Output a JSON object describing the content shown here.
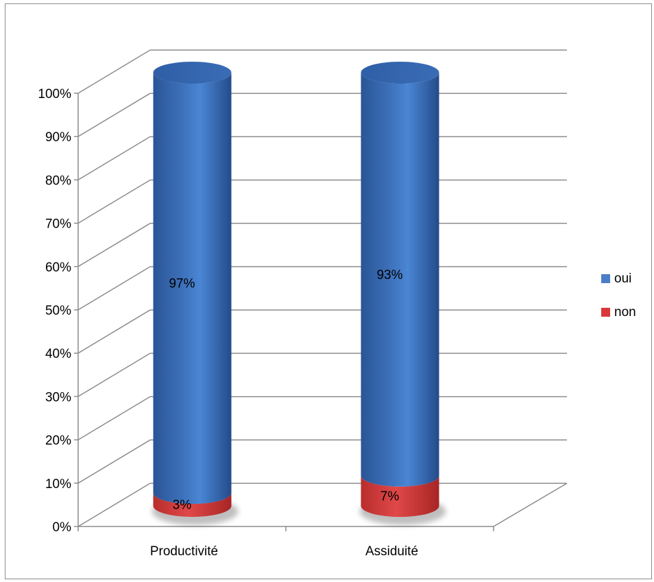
{
  "chart_data": {
    "type": "bar",
    "stacked": true,
    "three_d": true,
    "percent_stacked": true,
    "categories": [
      "Productivité",
      "Assiduité"
    ],
    "series": [
      {
        "name": "oui",
        "values": [
          97,
          93
        ],
        "labels": [
          "97%",
          "93%"
        ]
      },
      {
        "name": "non",
        "values": [
          3,
          7
        ],
        "labels": [
          "3%",
          "7%"
        ]
      }
    ],
    "y_ticks": [
      "0%",
      "10%",
      "20%",
      "30%",
      "40%",
      "50%",
      "60%",
      "70%",
      "80%",
      "90%",
      "100%"
    ],
    "ylim": [
      0,
      100
    ],
    "grid": true,
    "legend_position": "right",
    "colors": {
      "oui": "#4a7ec8",
      "non": "#d9383a"
    }
  }
}
